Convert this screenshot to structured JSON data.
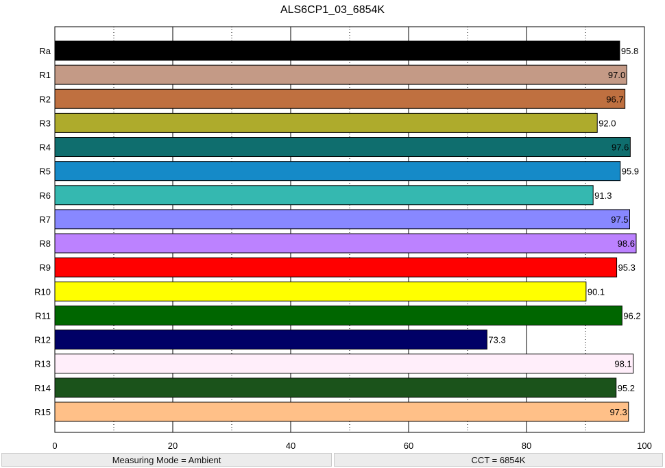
{
  "chart_data": {
    "type": "bar",
    "orientation": "horizontal",
    "title": "ALS6CP1_03_6854K",
    "xlabel": "",
    "ylabel": "",
    "xlim": [
      0,
      100
    ],
    "x_ticks": [
      "0",
      "20",
      "40",
      "60",
      "80",
      "100"
    ],
    "grid": "vertical dotted at every 10, solid at every 20",
    "legend": "none",
    "categories": [
      "Ra",
      "R1",
      "R2",
      "R3",
      "R4",
      "R5",
      "R6",
      "R7",
      "R8",
      "R9",
      "R10",
      "R11",
      "R12",
      "R13",
      "R14",
      "R15"
    ],
    "values": [
      95.8,
      97.0,
      96.7,
      92.0,
      97.6,
      95.9,
      91.3,
      97.5,
      98.6,
      95.3,
      90.1,
      96.2,
      73.3,
      98.1,
      95.2,
      97.3
    ],
    "value_labels": [
      "95.8",
      "97.0",
      "96.7",
      "92.0",
      "97.6",
      "95.9",
      "91.3",
      "97.5",
      "98.6",
      "95.3",
      "90.1",
      "96.2",
      "73.3",
      "98.1",
      "95.2",
      "97.3"
    ],
    "colors": [
      "#000000",
      "#c49a86",
      "#bf7040",
      "#aeab2c",
      "#0f6e6e",
      "#158ac8",
      "#35b8b0",
      "#8888ff",
      "#bc82ff",
      "#ff0000",
      "#ffff00",
      "#006600",
      "#000066",
      "#ffeefa",
      "#1b531b",
      "#ffc088"
    ]
  },
  "status": {
    "measuring_mode": "Measuring Mode = Ambient",
    "cct": "CCT = 6854K"
  }
}
